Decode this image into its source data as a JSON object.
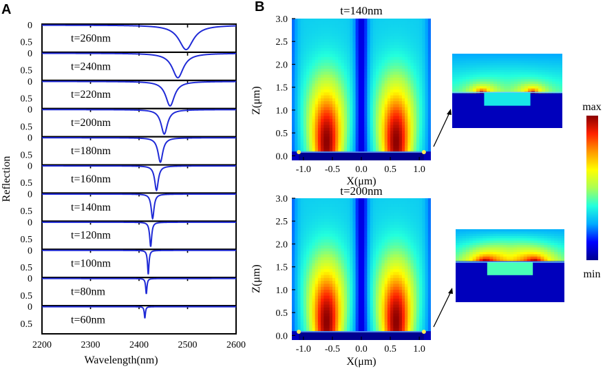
{
  "panels": {
    "a_letter": "A",
    "b_letter": "B"
  },
  "chart_data": [
    {
      "type": "line",
      "title": "",
      "xlabel": "Wavelength(nm)",
      "ylabel": "Reflection",
      "xlim": [
        2200,
        2600
      ],
      "ylim": [
        0,
        1
      ],
      "x_ticks": [
        "2200",
        "2300",
        "2400",
        "2500",
        "2600"
      ],
      "y_ticks": [
        "0",
        "0.5"
      ],
      "line_color": "#1f2ad6",
      "series": [
        {
          "name": "t=260nm",
          "center": 2497,
          "width": 18,
          "depth": 0.95
        },
        {
          "name": "t=240nm",
          "center": 2480,
          "width": 14,
          "depth": 0.95
        },
        {
          "name": "t=220nm",
          "center": 2464,
          "width": 11,
          "depth": 0.95
        },
        {
          "name": "t=200nm",
          "center": 2452,
          "width": 8,
          "depth": 0.95
        },
        {
          "name": "t=180nm",
          "center": 2444,
          "width": 6,
          "depth": 0.95
        },
        {
          "name": "t=160nm",
          "center": 2436,
          "width": 4.5,
          "depth": 0.95
        },
        {
          "name": "t=140nm",
          "center": 2428,
          "width": 3.5,
          "depth": 0.95
        },
        {
          "name": "t=120nm",
          "center": 2424,
          "width": 2.5,
          "depth": 0.95
        },
        {
          "name": "t=100nm",
          "center": 2419,
          "width": 1.8,
          "depth": 0.93
        },
        {
          "name": "t=80nm",
          "center": 2415,
          "width": 1.6,
          "depth": 0.6
        },
        {
          "name": "t=60nm",
          "center": 2412,
          "width": 1.4,
          "depth": 0.45
        }
      ]
    },
    {
      "type": "heatmap",
      "title": "t=140nm",
      "xlabel": "X(μm)",
      "ylabel": "Z(μm)",
      "xlim": [
        -1.2,
        1.2
      ],
      "ylim": [
        -0.1,
        3.0
      ],
      "x_ticks": [
        "-1.0",
        "-0.5",
        "0.0",
        "0.5",
        "1.0"
      ],
      "y_ticks": [
        "0.0",
        "0.5",
        "1.0",
        "1.5",
        "2.0",
        "2.5",
        "3.0"
      ],
      "hotspots_x": [
        -0.6,
        0.6
      ],
      "hotspot_peak_z": 0.3,
      "thickness_nm": 140
    },
    {
      "type": "heatmap",
      "title": "t=200nm",
      "xlabel": "X(μm)",
      "ylabel": "Z(μm)",
      "xlim": [
        -1.2,
        1.2
      ],
      "ylim": [
        -0.1,
        3.0
      ],
      "x_ticks": [
        "-1.0",
        "-0.5",
        "0.0",
        "0.5",
        "1.0"
      ],
      "y_ticks": [
        "0.0",
        "0.5",
        "1.0",
        "1.5",
        "2.0",
        "2.5",
        "3.0"
      ],
      "hotspots_x": [
        -0.6,
        0.6
      ],
      "hotspot_peak_z": 0.3,
      "thickness_nm": 200
    }
  ],
  "colorbar": {
    "max_label": "max",
    "min_label": "min",
    "colors": [
      "#00008f",
      "#0000ff",
      "#00aaff",
      "#22ffdd",
      "#aaff55",
      "#ffff00",
      "#ff9900",
      "#ff2200",
      "#8b0000"
    ]
  }
}
